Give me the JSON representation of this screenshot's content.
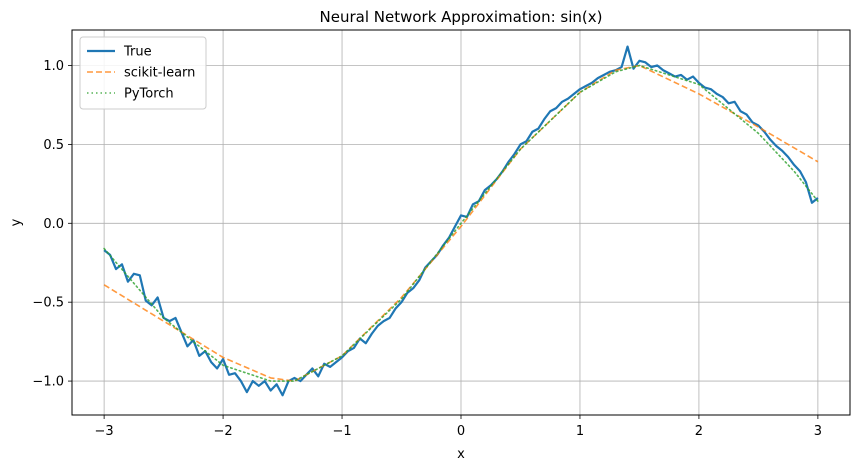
{
  "chart_data": {
    "type": "line",
    "title": "Neural Network Approximation: sin(x)",
    "xlabel": "x",
    "ylabel": "y",
    "xlim": [
      -3.27,
      3.27
    ],
    "ylim": [
      -1.215,
      1.225
    ],
    "xticks": [
      -3,
      -2,
      -1,
      0,
      1,
      2,
      3
    ],
    "xtick_labels": [
      "−3",
      "−2",
      "−1",
      "0",
      "1",
      "2",
      "3"
    ],
    "yticks": [
      -1.0,
      -0.5,
      0.0,
      0.5,
      1.0
    ],
    "ytick_labels": [
      "−1.0",
      "−0.5",
      "0.0",
      "0.5",
      "1.0"
    ],
    "grid": true,
    "legend_position": "upper-left",
    "series": [
      {
        "name": "True",
        "color": "#1f77b4",
        "style": "solid",
        "x": [
          -3.0,
          -2.95,
          -2.9,
          -2.85,
          -2.8,
          -2.75,
          -2.7,
          -2.65,
          -2.6,
          -2.55,
          -2.5,
          -2.45,
          -2.4,
          -2.35,
          -2.3,
          -2.25,
          -2.2,
          -2.15,
          -2.1,
          -2.05,
          -2.0,
          -1.95,
          -1.9,
          -1.85,
          -1.8,
          -1.75,
          -1.7,
          -1.65,
          -1.6,
          -1.55,
          -1.5,
          -1.45,
          -1.4,
          -1.35,
          -1.3,
          -1.25,
          -1.2,
          -1.15,
          -1.1,
          -1.05,
          -1.0,
          -0.95,
          -0.9,
          -0.85,
          -0.8,
          -0.75,
          -0.7,
          -0.65,
          -0.6,
          -0.55,
          -0.5,
          -0.45,
          -0.4,
          -0.35,
          -0.3,
          -0.25,
          -0.2,
          -0.15,
          -0.1,
          -0.05,
          0.0,
          0.05,
          0.1,
          0.15,
          0.2,
          0.25,
          0.3,
          0.35,
          0.4,
          0.45,
          0.5,
          0.55,
          0.6,
          0.65,
          0.7,
          0.75,
          0.8,
          0.85,
          0.9,
          0.95,
          1.0,
          1.05,
          1.1,
          1.15,
          1.2,
          1.25,
          1.3,
          1.35,
          1.4,
          1.45,
          1.5,
          1.55,
          1.6,
          1.65,
          1.7,
          1.75,
          1.8,
          1.85,
          1.9,
          1.95,
          2.0,
          2.05,
          2.1,
          2.15,
          2.2,
          2.25,
          2.3,
          2.35,
          2.4,
          2.45,
          2.5,
          2.55,
          2.6,
          2.65,
          2.7,
          2.75,
          2.8,
          2.85,
          2.9,
          2.95,
          3.0
        ],
        "y": [
          -0.17,
          -0.2,
          -0.29,
          -0.26,
          -0.37,
          -0.32,
          -0.33,
          -0.49,
          -0.52,
          -0.47,
          -0.6,
          -0.62,
          -0.6,
          -0.69,
          -0.78,
          -0.74,
          -0.84,
          -0.81,
          -0.88,
          -0.92,
          -0.86,
          -0.96,
          -0.95,
          -1.0,
          -1.07,
          -1.0,
          -1.03,
          -1.0,
          -1.06,
          -1.02,
          -1.09,
          -1.0,
          -0.98,
          -1.0,
          -0.96,
          -0.92,
          -0.97,
          -0.89,
          -0.91,
          -0.88,
          -0.85,
          -0.81,
          -0.79,
          -0.73,
          -0.76,
          -0.7,
          -0.65,
          -0.62,
          -0.6,
          -0.54,
          -0.5,
          -0.44,
          -0.41,
          -0.36,
          -0.28,
          -0.24,
          -0.2,
          -0.14,
          -0.09,
          -0.02,
          0.05,
          0.04,
          0.12,
          0.14,
          0.21,
          0.24,
          0.28,
          0.33,
          0.39,
          0.44,
          0.5,
          0.52,
          0.58,
          0.6,
          0.66,
          0.71,
          0.73,
          0.77,
          0.79,
          0.82,
          0.85,
          0.87,
          0.89,
          0.92,
          0.94,
          0.96,
          0.97,
          0.99,
          1.12,
          0.98,
          1.03,
          1.02,
          0.99,
          1.0,
          0.97,
          0.95,
          0.93,
          0.94,
          0.91,
          0.93,
          0.89,
          0.86,
          0.85,
          0.82,
          0.8,
          0.76,
          0.77,
          0.71,
          0.69,
          0.64,
          0.62,
          0.58,
          0.53,
          0.49,
          0.46,
          0.42,
          0.37,
          0.33,
          0.26,
          0.13,
          0.16
        ]
      },
      {
        "name": "scikit-learn",
        "color": "#ff7f0e",
        "style": "dashed",
        "x": [
          -3.0,
          -2.5,
          -2.0,
          -1.6,
          -1.4,
          -1.0,
          -0.5,
          0.0,
          0.5,
          1.0,
          1.3,
          1.5,
          2.0,
          2.5,
          3.0
        ],
        "y": [
          -0.39,
          -0.62,
          -0.85,
          -0.98,
          -1.0,
          -0.84,
          -0.47,
          -0.02,
          0.47,
          0.83,
          0.97,
          1.0,
          0.82,
          0.61,
          0.39
        ]
      },
      {
        "name": "PyTorch",
        "color": "#2ca02c",
        "style": "dotted",
        "x": [
          -3.0,
          -2.5,
          -2.0,
          -1.6,
          -1.4,
          -1.0,
          -0.5,
          0.0,
          0.5,
          1.0,
          1.3,
          1.5,
          2.0,
          2.5,
          2.8,
          3.0
        ],
        "y": [
          -0.16,
          -0.6,
          -0.9,
          -1.0,
          -1.0,
          -0.84,
          -0.48,
          0.0,
          0.47,
          0.83,
          0.96,
          1.0,
          0.88,
          0.57,
          0.33,
          0.14
        ]
      }
    ]
  }
}
